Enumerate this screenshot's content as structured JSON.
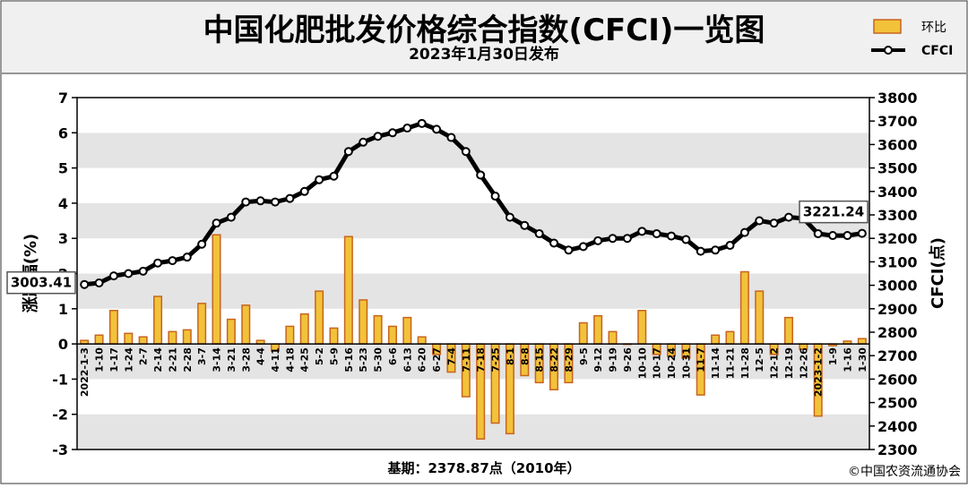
{
  "header": {
    "title": "中国化肥批发价格综合指数(CFCI)一览图",
    "subtitle": "2023年1月30日发布"
  },
  "legend": {
    "bar_label": "环比",
    "line_label": "CFCI"
  },
  "footer": {
    "base_note": "基期：2378.87点（2010年）",
    "copyright": "©中国农资流通协会"
  },
  "colors": {
    "bar_fill": "#f2c23a",
    "bar_edge": "#c8641e",
    "line": "#000000",
    "plot_band": "#e4e4e4"
  },
  "chart_data": {
    "type": "bar+line",
    "title": "中国化肥批发价格综合指数(CFCI)一览图",
    "subtitle": "2023年1月30日发布",
    "ylabel_left": "涨跌幅(%)",
    "ylabel_right": "CFCI(点)",
    "ylim_left": [
      -3,
      7
    ],
    "ylim_right": [
      2300,
      3800
    ],
    "yticks_left": [
      -3,
      -2,
      -1,
      0,
      1,
      2,
      3,
      4,
      5,
      6,
      7
    ],
    "yticks_right": [
      2300,
      2400,
      2500,
      2600,
      2700,
      2800,
      2900,
      3000,
      3100,
      3200,
      3300,
      3400,
      3500,
      3600,
      3700,
      3800
    ],
    "grid": "horizontal bands",
    "legend_position": "top-right",
    "categories": [
      "2022-1-3",
      "1-10",
      "1-17",
      "1-24",
      "2-7",
      "2-14",
      "2-21",
      "2-28",
      "3-7",
      "3-14",
      "3-21",
      "3-28",
      "4-4",
      "4-11",
      "4-18",
      "4-25",
      "5-2",
      "5-9",
      "5-16",
      "5-23",
      "5-30",
      "6-6",
      "6-13",
      "6-20",
      "6-27",
      "7-4",
      "7-11",
      "7-18",
      "7-25",
      "8-1",
      "8-8",
      "8-15",
      "8-22",
      "8-29",
      "9-5",
      "9-12",
      "9-19",
      "9-26",
      "10-10",
      "10-17",
      "10-24",
      "10-31",
      "11-7",
      "11-14",
      "11-21",
      "11-28",
      "12-5",
      "12-12",
      "12-19",
      "12-26",
      "2023-1-2",
      "1-9",
      "1-16",
      "1-30"
    ],
    "series": [
      {
        "name": "环比",
        "type": "bar",
        "axis": "left",
        "values": [
          0.1,
          0.25,
          0.95,
          0.3,
          0.2,
          1.35,
          0.35,
          0.4,
          1.15,
          3.1,
          0.7,
          1.1,
          0.1,
          -0.2,
          0.5,
          0.85,
          1.5,
          0.45,
          3.05,
          1.25,
          0.8,
          0.5,
          0.75,
          0.2,
          -0.3,
          -0.8,
          -1.5,
          -2.7,
          -2.25,
          -2.55,
          -0.9,
          -1.1,
          -1.3,
          -1.1,
          0.6,
          0.8,
          0.35,
          0.0,
          0.95,
          -0.3,
          -0.35,
          -0.4,
          -1.45,
          0.25,
          0.35,
          2.05,
          1.5,
          -0.3,
          0.75,
          -0.15,
          -2.05,
          -0.05,
          0.08,
          0.15
        ]
      },
      {
        "name": "CFCI",
        "type": "line",
        "axis": "right",
        "values": [
          3003.41,
          3010,
          3040,
          3050,
          3060,
          3095,
          3105,
          3120,
          3175,
          3265,
          3290,
          3355,
          3360,
          3355,
          3370,
          3400,
          3450,
          3465,
          3570,
          3610,
          3635,
          3650,
          3670,
          3690,
          3665,
          3630,
          3570,
          3470,
          3380,
          3290,
          3255,
          3220,
          3180,
          3150,
          3165,
          3190,
          3200,
          3200,
          3230,
          3220,
          3210,
          3195,
          3145,
          3150,
          3170,
          3225,
          3275,
          3265,
          3290,
          3285,
          3220,
          3212,
          3212,
          3221.24
        ]
      }
    ],
    "annotations": [
      {
        "text": "3003.41",
        "series": "CFCI",
        "index": 0
      },
      {
        "text": "3221.24",
        "series": "CFCI",
        "index": 53
      }
    ]
  }
}
